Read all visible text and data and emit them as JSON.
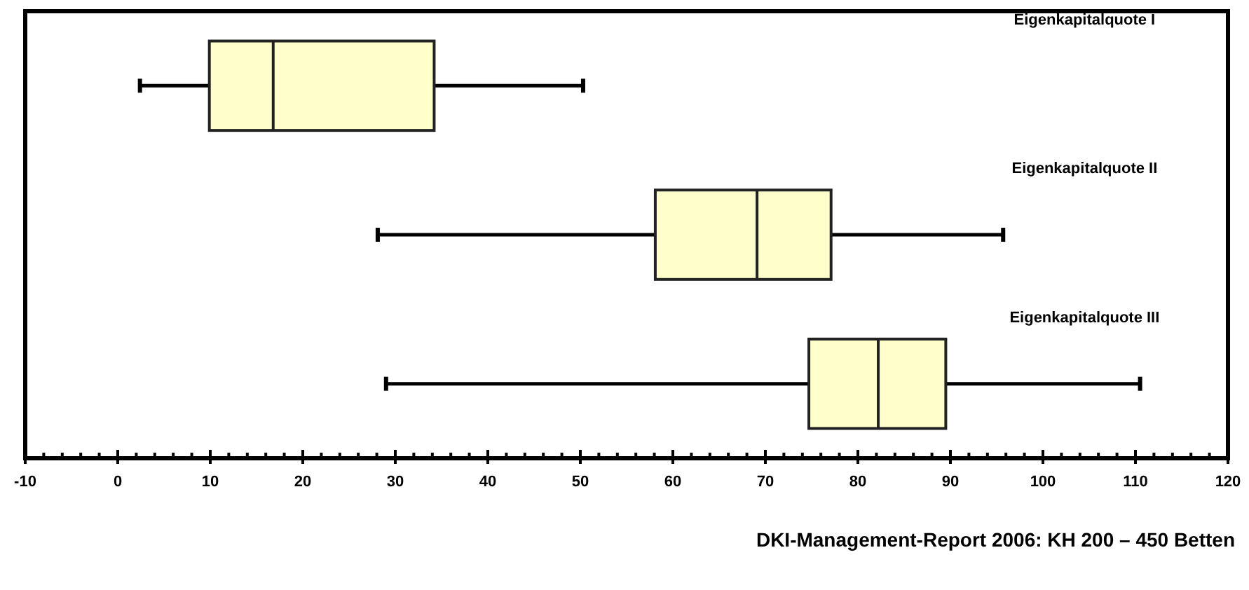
{
  "chart_data": {
    "type": "box",
    "orientation": "horizontal",
    "categories": [
      "Eigenkapitalquote I",
      "Eigenkapitalquote II",
      "Eigenkapitalquote III"
    ],
    "color": "#ffffcc",
    "boxes": [
      {
        "low": 2.4,
        "q1": 9.9,
        "median": 16.8,
        "q3": 34.2,
        "high": 50.3
      },
      {
        "low": 28.1,
        "q1": 58.1,
        "median": 69.1,
        "q3": 77.1,
        "high": 95.7
      },
      {
        "low": 29,
        "q1": 74.7,
        "median": 82.2,
        "q3": 89.5,
        "high": 110.5
      }
    ],
    "xlim": [
      -10,
      120
    ],
    "xticks": [
      -10,
      {
        "value": -8,
        "label": null
      },
      {
        "value": -6,
        "label": null
      },
      {
        "value": -4,
        "label": null
      },
      {
        "value": -2,
        "label": null
      },
      0,
      {
        "value": 2,
        "label": null
      },
      {
        "value": 4,
        "label": null
      },
      {
        "value": 6,
        "label": null
      },
      {
        "value": 8,
        "label": null
      },
      10,
      {
        "value": 12,
        "label": null
      },
      {
        "value": 14,
        "label": null
      },
      {
        "value": 16,
        "label": null
      },
      {
        "value": 18,
        "label": null
      },
      20,
      {
        "value": 22,
        "label": null
      },
      {
        "value": 24,
        "label": null
      },
      {
        "value": 26,
        "label": null
      },
      {
        "value": 28,
        "label": null
      },
      30,
      {
        "value": 32,
        "label": null
      },
      {
        "value": 34,
        "label": null
      },
      {
        "value": 36,
        "label": null
      },
      {
        "value": 38,
        "label": null
      },
      40,
      {
        "value": 42,
        "label": null
      },
      {
        "value": 44,
        "label": null
      },
      {
        "value": 46,
        "label": null
      },
      {
        "value": 48,
        "label": null
      },
      50,
      {
        "value": 52,
        "label": null
      },
      {
        "value": 54,
        "label": null
      },
      {
        "value": 56,
        "label": null
      },
      {
        "value": 58,
        "label": null
      },
      60,
      {
        "value": 62,
        "label": null
      },
      {
        "value": 64,
        "label": null
      },
      {
        "value": 66,
        "label": null
      },
      {
        "value": 68,
        "label": null
      },
      70,
      {
        "value": 72,
        "label": null
      },
      {
        "value": 74,
        "label": null
      },
      {
        "value": 76,
        "label": null
      },
      {
        "value": 78,
        "label": null
      },
      80,
      {
        "value": 82,
        "label": null
      },
      {
        "value": 84,
        "label": null
      },
      {
        "value": 86,
        "label": null
      },
      {
        "value": 88,
        "label": null
      },
      90,
      {
        "value": 92,
        "label": null
      },
      {
        "value": 94,
        "label": null
      },
      {
        "value": 96,
        "label": null
      },
      {
        "value": 98,
        "label": null
      },
      100,
      {
        "value": 102,
        "label": null
      },
      {
        "value": 104,
        "label": null
      },
      {
        "value": 106,
        "label": null
      },
      {
        "value": 108,
        "label": null
      },
      110,
      {
        "value": 112,
        "label": null
      },
      {
        "value": 114,
        "label": null
      },
      {
        "value": 116,
        "label": null
      },
      {
        "value": 118,
        "label": null
      },
      120
    ],
    "annotations": [
      "DKI-Management-Report 2006: KH 200 – 450 Betten"
    ]
  }
}
